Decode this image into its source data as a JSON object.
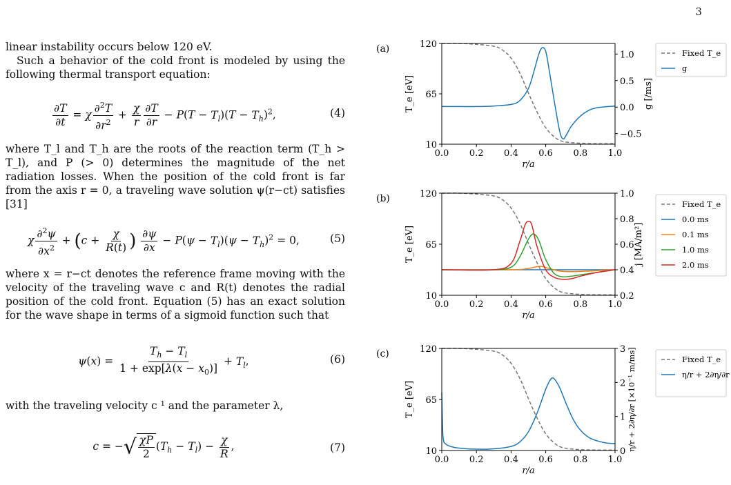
{
  "page_number": "3",
  "text": {
    "p1": "linear instability occurs below 120 eV.",
    "p2": "Such a behavior of the cold front is modeled by using the following thermal transport equation:",
    "p3": "where T_l and T_h are the roots of the reaction term (T_h > T_l), and P (> 0) determines the magnitude of the net radiation losses. When the position of the cold front is far from the axis r = 0, a traveling wave solution ψ(r−ct) satisfies [31]",
    "p4": "where x = r−ct denotes the reference frame moving with the velocity of the traveling wave c and R(t) denotes the radial position of the cold front. Equation (5) has an exact solution for the wave shape in terms of a sigmoid function such that",
    "p5": "with the traveling velocity c ¹ and the parameter λ,"
  },
  "equations": {
    "eq4": "(4)",
    "eq5": "(5)",
    "eq6": "(6)",
    "eq7": "(7)"
  },
  "figure": {
    "panel_labels": [
      "(a)",
      "(b)",
      "(c)"
    ],
    "xlabel": "r/a",
    "ylabel_left": "T_e [eV]",
    "ylabel_right": [
      "g [/ms]",
      "j [MA/m²]",
      "η/r + 2∂η/∂r [×10⁻¹ m/ms]"
    ],
    "legend": {
      "a": [
        "Fixed T_e",
        "g"
      ],
      "b": [
        "Fixed T_e",
        "0.0 ms",
        "0.1 ms",
        "1.0 ms",
        "2.0 ms"
      ],
      "c": [
        "Fixed T_e",
        "η/r + 2∂η/∂r"
      ]
    }
  },
  "chart_data": [
    {
      "type": "line",
      "panel": "(a)",
      "xlabel": "r/a",
      "ylabel": "T_e [eV]",
      "ylabel_right": "g [/ms]",
      "xlim": [
        0,
        1
      ],
      "ylim": [
        10,
        120
      ],
      "ylim_right": [
        -0.7,
        1.2
      ],
      "xticks": [
        "0.0",
        "0.2",
        "0.4",
        "0.6",
        "0.8",
        "1.0"
      ],
      "yticks": [
        "10",
        "65",
        "120"
      ],
      "yticks_right": [
        "−0.5",
        "0.0",
        "0.5",
        "1.0"
      ],
      "series": [
        {
          "name": "Fixed T_e",
          "axis": "left",
          "color": "#777777",
          "dash": true,
          "x": [
            0,
            0.1,
            0.2,
            0.3,
            0.35,
            0.4,
            0.45,
            0.5,
            0.55,
            0.6,
            0.65,
            0.7,
            0.8,
            0.9,
            1.0
          ],
          "y": [
            120,
            120,
            119,
            117,
            113,
            104,
            88,
            66,
            45,
            28,
            18,
            13,
            11,
            10.5,
            10.5
          ]
        },
        {
          "name": "g",
          "axis": "right",
          "color": "#1f77b4",
          "x": [
            0,
            0.1,
            0.2,
            0.3,
            0.4,
            0.45,
            0.5,
            0.53,
            0.56,
            0.58,
            0.6,
            0.62,
            0.65,
            0.68,
            0.7,
            0.72,
            0.75,
            0.8,
            0.85,
            0.9,
            1.0
          ],
          "y": [
            0.01,
            0.01,
            0.01,
            0.02,
            0.05,
            0.12,
            0.35,
            0.65,
            1.0,
            1.12,
            1.05,
            0.7,
            0.1,
            -0.45,
            -0.6,
            -0.52,
            -0.35,
            -0.17,
            -0.06,
            -0.01,
            0.02
          ]
        }
      ]
    },
    {
      "type": "line",
      "panel": "(b)",
      "xlabel": "r/a",
      "ylabel": "T_e [eV]",
      "ylabel_right": "j [MA/m²]",
      "xlim": [
        0,
        1
      ],
      "ylim": [
        10,
        120
      ],
      "ylim_right": [
        0.2,
        1.0
      ],
      "xticks": [
        "0.0",
        "0.2",
        "0.4",
        "0.6",
        "0.8",
        "1.0"
      ],
      "yticks": [
        "10",
        "65",
        "120"
      ],
      "yticks_right": [
        "0.2",
        "0.4",
        "0.6",
        "0.8",
        "1.0"
      ],
      "series": [
        {
          "name": "Fixed T_e",
          "axis": "left",
          "color": "#777777",
          "dash": true,
          "x": [
            0,
            0.1,
            0.2,
            0.3,
            0.35,
            0.4,
            0.45,
            0.5,
            0.55,
            0.6,
            0.65,
            0.7,
            0.8,
            0.9,
            1.0
          ],
          "y": [
            120,
            120,
            119,
            117,
            113,
            104,
            88,
            66,
            45,
            28,
            18,
            13,
            11,
            10.5,
            10.5
          ]
        },
        {
          "name": "0.0 ms",
          "axis": "right",
          "color": "#1f77b4",
          "x": [
            0,
            1
          ],
          "y": [
            0.4,
            0.4
          ]
        },
        {
          "name": "0.1 ms",
          "axis": "right",
          "color": "#ff7f0e",
          "x": [
            0,
            0.4,
            0.5,
            0.55,
            0.58,
            0.62,
            0.68,
            0.75,
            0.85,
            1.0
          ],
          "y": [
            0.4,
            0.4,
            0.41,
            0.425,
            0.425,
            0.41,
            0.39,
            0.385,
            0.39,
            0.4
          ]
        },
        {
          "name": "1.0 ms",
          "axis": "right",
          "color": "#2ca02c",
          "x": [
            0,
            0.3,
            0.4,
            0.45,
            0.5,
            0.53,
            0.56,
            0.6,
            0.65,
            0.7,
            0.75,
            0.8,
            0.9,
            1.0
          ],
          "y": [
            0.4,
            0.4,
            0.42,
            0.5,
            0.64,
            0.68,
            0.63,
            0.48,
            0.37,
            0.345,
            0.35,
            0.36,
            0.38,
            0.4
          ]
        },
        {
          "name": "2.0 ms",
          "axis": "right",
          "color": "#d62728",
          "x": [
            0,
            0.3,
            0.4,
            0.45,
            0.48,
            0.5,
            0.52,
            0.55,
            0.6,
            0.65,
            0.7,
            0.75,
            0.8,
            0.9,
            1.0
          ],
          "y": [
            0.4,
            0.4,
            0.45,
            0.62,
            0.75,
            0.78,
            0.75,
            0.58,
            0.4,
            0.34,
            0.325,
            0.33,
            0.35,
            0.38,
            0.4
          ]
        }
      ]
    },
    {
      "type": "line",
      "panel": "(c)",
      "xlabel": "r/a",
      "ylabel": "T_e [eV]",
      "ylabel_right": "η/r + 2∂η/∂r [×10⁻¹ m/ms]",
      "xlim": [
        0,
        1
      ],
      "ylim": [
        10,
        120
      ],
      "ylim_right": [
        0,
        3
      ],
      "xticks": [
        "0.0",
        "0.2",
        "0.4",
        "0.6",
        "0.8",
        "1.0"
      ],
      "yticks": [
        "10",
        "65",
        "120"
      ],
      "yticks_right": [
        "0",
        "1",
        "2",
        "3"
      ],
      "series": [
        {
          "name": "Fixed T_e",
          "axis": "left",
          "color": "#777777",
          "dash": true,
          "x": [
            0,
            0.1,
            0.2,
            0.3,
            0.35,
            0.4,
            0.45,
            0.5,
            0.55,
            0.6,
            0.65,
            0.7,
            0.8,
            0.9,
            1.0
          ],
          "y": [
            120,
            120,
            119,
            117,
            113,
            104,
            88,
            66,
            45,
            28,
            18,
            13,
            11,
            10.5,
            10.5
          ]
        },
        {
          "name": "η/r + 2∂η/∂r",
          "axis": "right",
          "color": "#1f77b4",
          "x": [
            0,
            0.005,
            0.01,
            0.02,
            0.05,
            0.1,
            0.2,
            0.3,
            0.4,
            0.45,
            0.5,
            0.55,
            0.6,
            0.63,
            0.65,
            0.68,
            0.72,
            0.76,
            0.8,
            0.85,
            0.9,
            0.95,
            1.0
          ],
          "y": [
            1.7,
            0.6,
            0.3,
            0.2,
            0.12,
            0.07,
            0.04,
            0.05,
            0.12,
            0.25,
            0.55,
            1.1,
            1.8,
            2.1,
            2.1,
            1.85,
            1.35,
            0.9,
            0.6,
            0.38,
            0.28,
            0.22,
            0.2
          ]
        }
      ]
    }
  ]
}
